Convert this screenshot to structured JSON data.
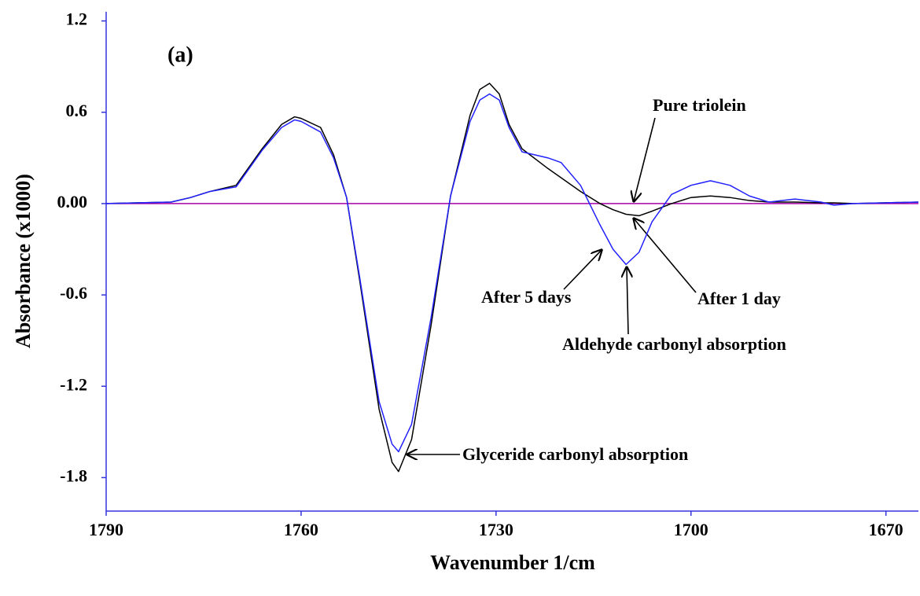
{
  "chart_data": {
    "type": "line",
    "xlabel": "Wavenumber 1/cm",
    "ylabel": "Absorbance (x1000)",
    "annotations": [
      "(a)",
      "Aldehyde carbonyl absorption",
      "Glyceride carbonyl absorption"
    ],
    "x": [
      1790,
      1780,
      1777,
      1774,
      1770,
      1766,
      1763,
      1761,
      1760,
      1757,
      1755,
      1753,
      1751,
      1748,
      1746,
      1745,
      1743,
      1740,
      1737,
      1734,
      1732.5,
      1731,
      1729.5,
      1728,
      1726,
      1722,
      1720,
      1717,
      1714,
      1712,
      1710,
      1708,
      1706,
      1703,
      1700,
      1697,
      1694,
      1691,
      1688,
      1684,
      1680,
      1678,
      1675,
      1665
    ],
    "series": [
      {
        "name": "Pure triolein",
        "color": "#aa00aa",
        "values": [
          0,
          0,
          0,
          0,
          0,
          0,
          0,
          0,
          0,
          0,
          0,
          0,
          0,
          0,
          0,
          0,
          0,
          0,
          0,
          0,
          0,
          0,
          0,
          0,
          0,
          0,
          0,
          0,
          0,
          0,
          0,
          0,
          0,
          0,
          0,
          0,
          0,
          0,
          0,
          0,
          0,
          0,
          0,
          0
        ]
      },
      {
        "name": "After 1 day",
        "color": "#000000",
        "values": [
          0,
          0.01,
          0.04,
          0.08,
          0.12,
          0.36,
          0.52,
          0.57,
          0.56,
          0.5,
          0.32,
          0.04,
          -0.5,
          -1.35,
          -1.7,
          -1.76,
          -1.55,
          -0.8,
          0.05,
          0.58,
          0.75,
          0.79,
          0.72,
          0.52,
          0.36,
          0.23,
          0.17,
          0.08,
          0,
          -0.04,
          -0.07,
          -0.08,
          -0.05,
          0,
          0.04,
          0.05,
          0.04,
          0.02,
          0.01,
          0.01,
          0.005,
          0.005,
          0,
          0.01
        ]
      },
      {
        "name": "After 5 days",
        "color": "#2222ff",
        "values": [
          0,
          0.01,
          0.04,
          0.08,
          0.11,
          0.35,
          0.5,
          0.55,
          0.54,
          0.47,
          0.3,
          0.04,
          -0.48,
          -1.3,
          -1.58,
          -1.63,
          -1.45,
          -0.75,
          0.05,
          0.54,
          0.68,
          0.72,
          0.68,
          0.5,
          0.34,
          0.3,
          0.27,
          0.12,
          -0.14,
          -0.3,
          -0.4,
          -0.32,
          -0.12,
          0.06,
          0.12,
          0.15,
          0.12,
          0.05,
          0.01,
          0.03,
          0.01,
          -0.01,
          0,
          0.01
        ]
      }
    ],
    "xlim": [
      1790,
      1665
    ],
    "xticks": [
      1790,
      1760,
      1730,
      1700,
      1670
    ],
    "ylim": [
      -2.02,
      1.26
    ],
    "yticks": [
      1.2,
      0.6,
      {
        "value": 0,
        "label": "0.00"
      },
      -0.6,
      -1.2,
      -1.8
    ],
    "axis_color": "#3333dd"
  }
}
